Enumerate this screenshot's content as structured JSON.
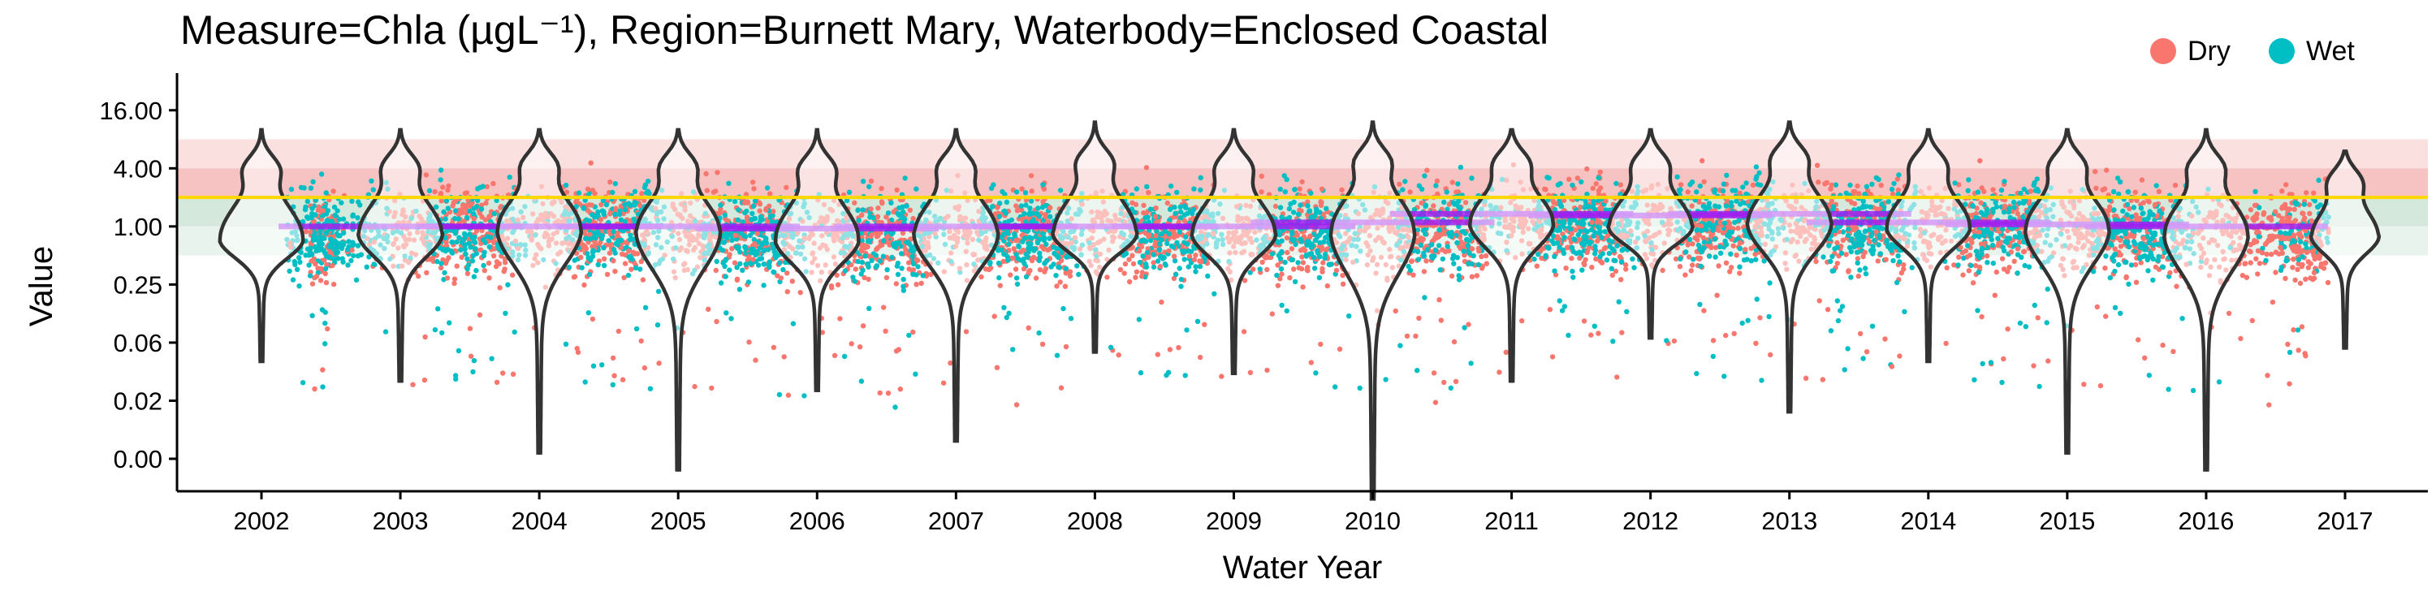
{
  "title": "Measure=Chla (µgL⁻¹), Region=Burnett Mary, Waterbody=Enclosed Coastal",
  "legend": {
    "items": [
      {
        "label": "Dry",
        "color": "#f8766d"
      },
      {
        "label": "Wet",
        "color": "#00bfc4"
      }
    ]
  },
  "colors": {
    "dry": "#f8766d",
    "wet": "#00bfc4",
    "guideline_line": "#ffd700",
    "trend_line": "#a020f0",
    "violin": "#333333"
  },
  "chart_data": {
    "type": "scatter",
    "xlabel": "Water Year",
    "ylabel": "Value",
    "categories": [
      "2002",
      "2003",
      "2004",
      "2005",
      "2006",
      "2007",
      "2008",
      "2009",
      "2010",
      "2011",
      "2012",
      "2013",
      "2014",
      "2015",
      "2016",
      "2017"
    ],
    "y_scale": "log",
    "y_ticks": [
      {
        "label": "16.00",
        "value": 16
      },
      {
        "label": "4.00",
        "value": 4
      },
      {
        "label": "1.00",
        "value": 1
      },
      {
        "label": "0.25",
        "value": 0.25
      },
      {
        "label": "0.06",
        "value": 0.0625
      },
      {
        "label": "0.02",
        "value": 0.015625
      },
      {
        "label": "0.00",
        "value": 0.00390625
      }
    ],
    "ylim": [
      0.0018,
      32
    ],
    "guideline_value": 2.0,
    "guideline_bands": [
      {
        "from": 4.0,
        "to": 8.0,
        "fill": "#fbe0e0"
      },
      {
        "from": 2.0,
        "to": 4.0,
        "fill": "#f7c2c2"
      },
      {
        "from": 1.0,
        "to": 2.0,
        "fill": "#d5e8dc"
      },
      {
        "from": 0.5,
        "to": 1.0,
        "fill": "#e7f3ec"
      }
    ],
    "series": [
      {
        "name": "Dry"
      },
      {
        "name": "Wet"
      }
    ],
    "violins": [
      {
        "year": "2002",
        "median": 0.75,
        "max": 10,
        "min": 0.04
      },
      {
        "year": "2003",
        "median": 0.85,
        "max": 10,
        "min": 0.025
      },
      {
        "year": "2004",
        "median": 0.95,
        "max": 10,
        "min": 0.0045
      },
      {
        "year": "2005",
        "median": 0.9,
        "max": 10,
        "min": 0.003
      },
      {
        "year": "2006",
        "median": 0.75,
        "max": 10,
        "min": 0.02
      },
      {
        "year": "2007",
        "median": 0.85,
        "max": 10,
        "min": 0.006
      },
      {
        "year": "2008",
        "median": 0.85,
        "max": 12,
        "min": 0.05
      },
      {
        "year": "2009",
        "median": 0.85,
        "max": 10,
        "min": 0.03
      },
      {
        "year": "2010",
        "median": 0.9,
        "max": 12,
        "min": 0.0015
      },
      {
        "year": "2011",
        "median": 1.1,
        "max": 10,
        "min": 0.025
      },
      {
        "year": "2012",
        "median": 1.0,
        "max": 10,
        "min": 0.07
      },
      {
        "year": "2013",
        "median": 1.1,
        "max": 12,
        "min": 0.012
      },
      {
        "year": "2014",
        "median": 1.0,
        "max": 10,
        "min": 0.04
      },
      {
        "year": "2015",
        "median": 0.95,
        "max": 10,
        "min": 0.0045
      },
      {
        "year": "2016",
        "median": 0.85,
        "max": 10,
        "min": 0.003
      },
      {
        "year": "2017",
        "median": 0.8,
        "max": 6,
        "min": 0.055
      }
    ],
    "trend": [
      {
        "year": "2002",
        "value": null
      },
      {
        "year": "2003",
        "value": 1.0
      },
      {
        "year": "2004",
        "value": 1.0
      },
      {
        "year": "2005",
        "value": 1.0
      },
      {
        "year": "2006",
        "value": 0.95
      },
      {
        "year": "2007",
        "value": 1.0
      },
      {
        "year": "2008",
        "value": 1.0
      },
      {
        "year": "2009",
        "value": 1.0
      },
      {
        "year": "2010",
        "value": 1.1
      },
      {
        "year": "2011",
        "value": 1.35
      },
      {
        "year": "2012",
        "value": 1.3
      },
      {
        "year": "2013",
        "value": 1.35
      },
      {
        "year": "2014",
        "value": 1.1
      },
      {
        "year": "2015",
        "value": 1.05
      },
      {
        "year": "2016",
        "value": 1.0
      },
      {
        "year": "2017",
        "value": null
      }
    ],
    "grid": false,
    "legend_position": "top-right"
  }
}
